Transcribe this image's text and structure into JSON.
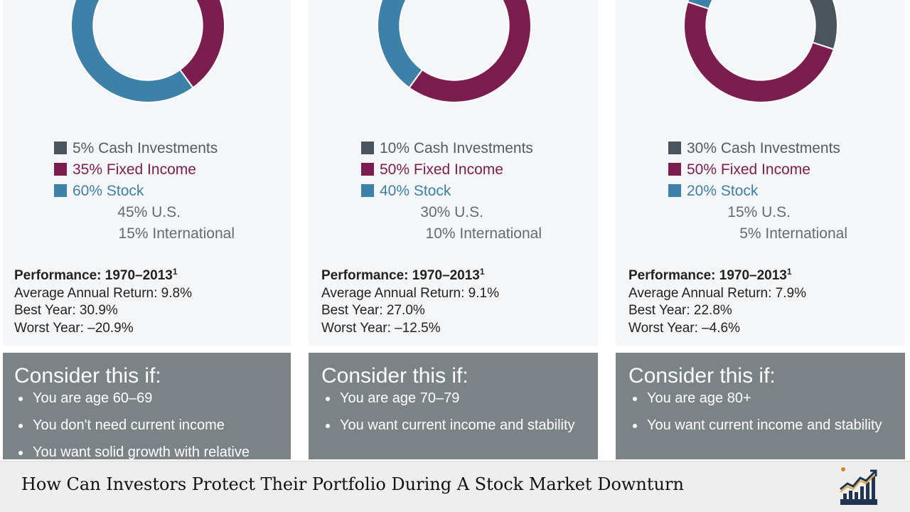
{
  "colors": {
    "cash": "#4a545c",
    "fixed_income": "#7b1d4f",
    "stock": "#3d80a8",
    "card_bg": "#f5f6f8",
    "consider_bg": "#7b8387",
    "perf_text": "#222222",
    "sub_text": "#666b6e"
  },
  "chart_data": [
    {
      "type": "pie",
      "donut": true,
      "slices": [
        {
          "label": "Cash Investments",
          "value": 5,
          "display": "5%",
          "color": "#4a545c"
        },
        {
          "label": "Fixed Income",
          "value": 35,
          "display": "35%",
          "color": "#7b1d4f"
        },
        {
          "label": "Stock",
          "value": 60,
          "display": "60%",
          "color": "#3d80a8"
        }
      ],
      "stock_breakdown": [
        {
          "value": 45,
          "label": "45% U.S."
        },
        {
          "value": 15,
          "label": "15% International"
        }
      ]
    },
    {
      "type": "pie",
      "donut": true,
      "slices": [
        {
          "label": "Cash Investments",
          "value": 10,
          "display": "10%",
          "color": "#4a545c"
        },
        {
          "label": "Fixed Income",
          "value": 50,
          "display": "50%",
          "color": "#7b1d4f"
        },
        {
          "label": "Stock",
          "value": 40,
          "display": "40%",
          "color": "#3d80a8"
        }
      ],
      "stock_breakdown": [
        {
          "value": 30,
          "label": "30% U.S."
        },
        {
          "value": 10,
          "label": "10% International"
        }
      ]
    },
    {
      "type": "pie",
      "donut": true,
      "slices": [
        {
          "label": "Cash Investments",
          "value": 30,
          "display": "30%",
          "color": "#4a545c"
        },
        {
          "label": "Fixed Income",
          "value": 50,
          "display": "50%",
          "color": "#7b1d4f"
        },
        {
          "label": "Stock",
          "value": 20,
          "display": "20%",
          "color": "#3d80a8"
        }
      ],
      "stock_breakdown": [
        {
          "value": 15,
          "label": "15% U.S."
        },
        {
          "value": 5,
          "label": "5% International"
        }
      ]
    }
  ],
  "columns": [
    {
      "legend": {
        "cash": "5% Cash Investments",
        "fixed": "35% Fixed Income",
        "stock": "60% Stock",
        "us": "45% U.S.",
        "intl": "15% International"
      },
      "performance": {
        "heading": "Performance: 1970–2013",
        "footnote": "1",
        "average": "Average Annual Return: 9.8%",
        "best": "Best Year: 30.9%",
        "worst": "Worst Year: –20.9%"
      },
      "consider": {
        "title": "Consider this if:",
        "items": [
          "You are age 60–69",
          "You don't need current income",
          "You want solid growth with relative"
        ]
      }
    },
    {
      "legend": {
        "cash": "10% Cash Investments",
        "fixed": "50% Fixed Income",
        "stock": "40% Stock",
        "us": "30% U.S.",
        "intl": "10% International"
      },
      "performance": {
        "heading": "Performance: 1970–2013",
        "footnote": "1",
        "average": "Average Annual Return: 9.1%",
        "best": "Best Year: 27.0%",
        "worst": "Worst Year: –12.5%"
      },
      "consider": {
        "title": "Consider this if:",
        "items": [
          "You are age 70–79",
          "You want current income and stability"
        ]
      }
    },
    {
      "legend": {
        "cash": "30% Cash Investments",
        "fixed": "50% Fixed Income",
        "stock": "20% Stock",
        "us": "15% U.S.",
        "intl": "5% International"
      },
      "performance": {
        "heading": "Performance: 1970–2013",
        "footnote": "1",
        "average": "Average Annual Return: 7.9%",
        "best": "Best Year: 22.8%",
        "worst": "Worst Year: –4.6%"
      },
      "consider": {
        "title": "Consider this if:",
        "items": [
          "You are age 80+",
          "You want current income and stability"
        ]
      }
    }
  ],
  "footer": {
    "title": "How Can Investors Protect Their Portfolio During A Stock Market Downturn",
    "logo_icon": "chart-growth-icon"
  }
}
